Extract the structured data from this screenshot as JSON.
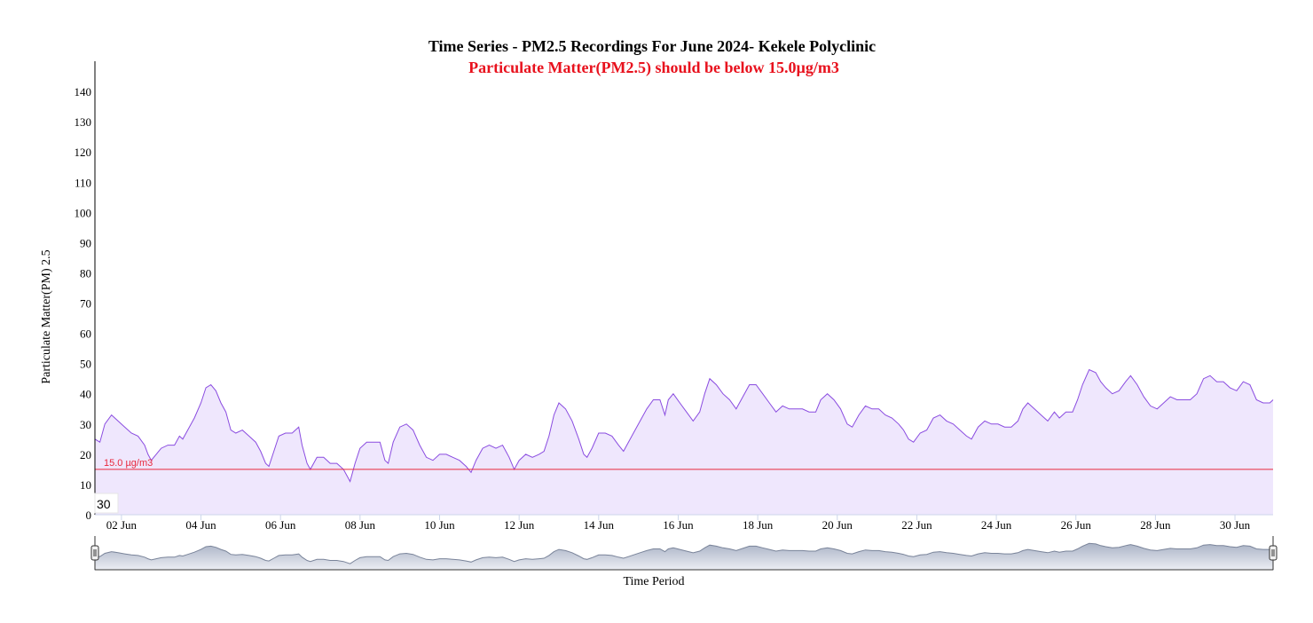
{
  "chart_data": {
    "type": "area",
    "title": "Time Series - PM2.5 Recordings For June 2024- Kekele Polyclinic",
    "subtitle": "Particulate Matter(PM2.5) should be below 15.0µg/m3",
    "xlabel": "Time Period",
    "ylabel": "Particulate Matter(PM) 2.5",
    "ylim": [
      0,
      150
    ],
    "yticks": [
      0,
      10,
      20,
      30,
      40,
      50,
      60,
      70,
      80,
      90,
      100,
      110,
      120,
      130,
      140
    ],
    "x_domain": [
      "2024-06-01T08:00",
      "2024-06-30T23:00"
    ],
    "xticks": [
      {
        "date": "2024-06-02",
        "label": "02 Jun"
      },
      {
        "date": "2024-06-04",
        "label": "04 Jun"
      },
      {
        "date": "2024-06-06",
        "label": "06 Jun"
      },
      {
        "date": "2024-06-08",
        "label": "08 Jun"
      },
      {
        "date": "2024-06-10",
        "label": "10 Jun"
      },
      {
        "date": "2024-06-12",
        "label": "12 Jun"
      },
      {
        "date": "2024-06-14",
        "label": "14 Jun"
      },
      {
        "date": "2024-06-16",
        "label": "16 Jun"
      },
      {
        "date": "2024-06-18",
        "label": "18 Jun"
      },
      {
        "date": "2024-06-20",
        "label": "20 Jun"
      },
      {
        "date": "2024-06-22",
        "label": "22 Jun"
      },
      {
        "date": "2024-06-24",
        "label": "24 Jun"
      },
      {
        "date": "2024-06-26",
        "label": "26 Jun"
      },
      {
        "date": "2024-06-28",
        "label": "28 Jun"
      },
      {
        "date": "2024-06-30",
        "label": "30 Jun"
      }
    ],
    "threshold": {
      "value": 15.0,
      "label": "15.0 µg/m3",
      "color": "#e8283c"
    },
    "badge": "30",
    "grid": false,
    "legend": "none",
    "series": [
      {
        "color": "#8a4ce0",
        "fill": "#efe7fd",
        "points": [
          [
            "2024-06-01T08:00",
            25
          ],
          [
            "2024-06-01T11:00",
            24
          ],
          [
            "2024-06-01T14:00",
            30
          ],
          [
            "2024-06-01T18:00",
            33
          ],
          [
            "2024-06-01T22:00",
            31
          ],
          [
            "2024-06-02T02:00",
            29
          ],
          [
            "2024-06-02T06:00",
            27
          ],
          [
            "2024-06-02T10:00",
            26
          ],
          [
            "2024-06-02T14:00",
            23
          ],
          [
            "2024-06-02T16:00",
            20
          ],
          [
            "2024-06-02T18:00",
            18
          ],
          [
            "2024-06-02T21:00",
            20
          ],
          [
            "2024-06-03T00:00",
            22
          ],
          [
            "2024-06-03T04:00",
            23
          ],
          [
            "2024-06-03T08:00",
            23
          ],
          [
            "2024-06-03T11:00",
            26
          ],
          [
            "2024-06-03T13:00",
            25
          ],
          [
            "2024-06-03T16:00",
            28
          ],
          [
            "2024-06-03T20:00",
            32
          ],
          [
            "2024-06-04T00:00",
            37
          ],
          [
            "2024-06-04T03:00",
            42
          ],
          [
            "2024-06-04T06:00",
            43
          ],
          [
            "2024-06-04T09:00",
            41
          ],
          [
            "2024-06-04T12:00",
            37
          ],
          [
            "2024-06-04T15:00",
            34
          ],
          [
            "2024-06-04T18:00",
            28
          ],
          [
            "2024-06-04T21:00",
            27
          ],
          [
            "2024-06-05T01:00",
            28
          ],
          [
            "2024-06-05T05:00",
            26
          ],
          [
            "2024-06-05T09:00",
            24
          ],
          [
            "2024-06-05T12:00",
            21
          ],
          [
            "2024-06-05T15:00",
            17
          ],
          [
            "2024-06-05T17:00",
            16
          ],
          [
            "2024-06-05T20:00",
            21
          ],
          [
            "2024-06-05T23:00",
            26
          ],
          [
            "2024-06-06T03:00",
            27
          ],
          [
            "2024-06-06T07:00",
            27
          ],
          [
            "2024-06-06T09:00",
            28
          ],
          [
            "2024-06-06T11:00",
            29
          ],
          [
            "2024-06-06T13:00",
            23
          ],
          [
            "2024-06-06T16:00",
            17
          ],
          [
            "2024-06-06T18:00",
            15
          ],
          [
            "2024-06-06T22:00",
            19
          ],
          [
            "2024-06-07T02:00",
            19
          ],
          [
            "2024-06-07T06:00",
            17
          ],
          [
            "2024-06-07T10:00",
            17
          ],
          [
            "2024-06-07T14:00",
            15
          ],
          [
            "2024-06-07T18:00",
            11
          ],
          [
            "2024-06-07T21:00",
            17
          ],
          [
            "2024-06-08T00:00",
            22
          ],
          [
            "2024-06-08T04:00",
            24
          ],
          [
            "2024-06-08T08:00",
            24
          ],
          [
            "2024-06-08T12:00",
            24
          ],
          [
            "2024-06-08T15:00",
            18
          ],
          [
            "2024-06-08T17:00",
            17
          ],
          [
            "2024-06-08T20:00",
            24
          ],
          [
            "2024-06-09T00:00",
            29
          ],
          [
            "2024-06-09T04:00",
            30
          ],
          [
            "2024-06-09T08:00",
            28
          ],
          [
            "2024-06-09T12:00",
            23
          ],
          [
            "2024-06-09T16:00",
            19
          ],
          [
            "2024-06-09T20:00",
            18
          ],
          [
            "2024-06-10T00:00",
            20
          ],
          [
            "2024-06-10T04:00",
            20
          ],
          [
            "2024-06-10T08:00",
            19
          ],
          [
            "2024-06-10T12:00",
            18
          ],
          [
            "2024-06-10T16:00",
            16
          ],
          [
            "2024-06-10T19:00",
            14
          ],
          [
            "2024-06-10T22:00",
            18
          ],
          [
            "2024-06-11T02:00",
            22
          ],
          [
            "2024-06-11T06:00",
            23
          ],
          [
            "2024-06-11T10:00",
            22
          ],
          [
            "2024-06-11T14:00",
            23
          ],
          [
            "2024-06-11T18:00",
            19
          ],
          [
            "2024-06-11T21:00",
            15
          ],
          [
            "2024-06-12T00:00",
            18
          ],
          [
            "2024-06-12T04:00",
            20
          ],
          [
            "2024-06-12T08:00",
            19
          ],
          [
            "2024-06-12T12:00",
            20
          ],
          [
            "2024-06-12T15:00",
            21
          ],
          [
            "2024-06-12T18:00",
            26
          ],
          [
            "2024-06-12T21:00",
            33
          ],
          [
            "2024-06-13T00:00",
            37
          ],
          [
            "2024-06-13T04:00",
            35
          ],
          [
            "2024-06-13T08:00",
            31
          ],
          [
            "2024-06-13T12:00",
            25
          ],
          [
            "2024-06-13T15:00",
            20
          ],
          [
            "2024-06-13T17:00",
            19
          ],
          [
            "2024-06-13T20:00",
            22
          ],
          [
            "2024-06-14T00:00",
            27
          ],
          [
            "2024-06-14T04:00",
            27
          ],
          [
            "2024-06-14T08:00",
            26
          ],
          [
            "2024-06-14T12:00",
            23
          ],
          [
            "2024-06-14T15:00",
            21
          ],
          [
            "2024-06-14T18:00",
            24
          ],
          [
            "2024-06-14T21:00",
            27
          ],
          [
            "2024-06-15T01:00",
            31
          ],
          [
            "2024-06-15T05:00",
            35
          ],
          [
            "2024-06-15T09:00",
            38
          ],
          [
            "2024-06-15T13:00",
            38
          ],
          [
            "2024-06-15T16:00",
            33
          ],
          [
            "2024-06-15T18:00",
            38
          ],
          [
            "2024-06-15T21:00",
            40
          ],
          [
            "2024-06-16T01:00",
            37
          ],
          [
            "2024-06-16T05:00",
            34
          ],
          [
            "2024-06-16T09:00",
            31
          ],
          [
            "2024-06-16T13:00",
            34
          ],
          [
            "2024-06-16T16:00",
            40
          ],
          [
            "2024-06-16T19:00",
            45
          ],
          [
            "2024-06-16T23:00",
            43
          ],
          [
            "2024-06-17T03:00",
            40
          ],
          [
            "2024-06-17T07:00",
            38
          ],
          [
            "2024-06-17T11:00",
            35
          ],
          [
            "2024-06-17T15:00",
            39
          ],
          [
            "2024-06-17T19:00",
            43
          ],
          [
            "2024-06-17T23:00",
            43
          ],
          [
            "2024-06-18T03:00",
            40
          ],
          [
            "2024-06-18T07:00",
            37
          ],
          [
            "2024-06-18T11:00",
            34
          ],
          [
            "2024-06-18T15:00",
            36
          ],
          [
            "2024-06-18T19:00",
            35
          ],
          [
            "2024-06-18T23:00",
            35
          ],
          [
            "2024-06-19T03:00",
            35
          ],
          [
            "2024-06-19T07:00",
            34
          ],
          [
            "2024-06-19T11:00",
            34
          ],
          [
            "2024-06-19T14:00",
            38
          ],
          [
            "2024-06-19T18:00",
            40
          ],
          [
            "2024-06-19T22:00",
            38
          ],
          [
            "2024-06-20T02:00",
            35
          ],
          [
            "2024-06-20T06:00",
            30
          ],
          [
            "2024-06-20T09:00",
            29
          ],
          [
            "2024-06-20T13:00",
            33
          ],
          [
            "2024-06-20T17:00",
            36
          ],
          [
            "2024-06-20T21:00",
            35
          ],
          [
            "2024-06-21T01:00",
            35
          ],
          [
            "2024-06-21T05:00",
            33
          ],
          [
            "2024-06-21T09:00",
            32
          ],
          [
            "2024-06-21T13:00",
            30
          ],
          [
            "2024-06-21T16:00",
            28
          ],
          [
            "2024-06-21T19:00",
            25
          ],
          [
            "2024-06-21T22:00",
            24
          ],
          [
            "2024-06-22T02:00",
            27
          ],
          [
            "2024-06-22T06:00",
            28
          ],
          [
            "2024-06-22T10:00",
            32
          ],
          [
            "2024-06-22T14:00",
            33
          ],
          [
            "2024-06-22T18:00",
            31
          ],
          [
            "2024-06-22T22:00",
            30
          ],
          [
            "2024-06-23T02:00",
            28
          ],
          [
            "2024-06-23T06:00",
            26
          ],
          [
            "2024-06-23T09:00",
            25
          ],
          [
            "2024-06-23T13:00",
            29
          ],
          [
            "2024-06-23T17:00",
            31
          ],
          [
            "2024-06-23T21:00",
            30
          ],
          [
            "2024-06-24T01:00",
            30
          ],
          [
            "2024-06-24T05:00",
            29
          ],
          [
            "2024-06-24T09:00",
            29
          ],
          [
            "2024-06-24T13:00",
            31
          ],
          [
            "2024-06-24T16:00",
            35
          ],
          [
            "2024-06-24T19:00",
            37
          ],
          [
            "2024-06-24T23:00",
            35
          ],
          [
            "2024-06-25T03:00",
            33
          ],
          [
            "2024-06-25T07:00",
            31
          ],
          [
            "2024-06-25T11:00",
            34
          ],
          [
            "2024-06-25T14:00",
            32
          ],
          [
            "2024-06-25T18:00",
            34
          ],
          [
            "2024-06-25T22:00",
            34
          ],
          [
            "2024-06-26T01:00",
            38
          ],
          [
            "2024-06-26T04:00",
            43
          ],
          [
            "2024-06-26T08:00",
            48
          ],
          [
            "2024-06-26T12:00",
            47
          ],
          [
            "2024-06-26T15:00",
            44
          ],
          [
            "2024-06-26T18:00",
            42
          ],
          [
            "2024-06-26T22:00",
            40
          ],
          [
            "2024-06-27T02:00",
            41
          ],
          [
            "2024-06-27T06:00",
            44
          ],
          [
            "2024-06-27T09:00",
            46
          ],
          [
            "2024-06-27T13:00",
            43
          ],
          [
            "2024-06-27T17:00",
            39
          ],
          [
            "2024-06-27T21:00",
            36
          ],
          [
            "2024-06-28T01:00",
            35
          ],
          [
            "2024-06-28T05:00",
            37
          ],
          [
            "2024-06-28T09:00",
            39
          ],
          [
            "2024-06-28T13:00",
            38
          ],
          [
            "2024-06-28T17:00",
            38
          ],
          [
            "2024-06-28T21:00",
            38
          ],
          [
            "2024-06-29T01:00",
            40
          ],
          [
            "2024-06-29T05:00",
            45
          ],
          [
            "2024-06-29T09:00",
            46
          ],
          [
            "2024-06-29T13:00",
            44
          ],
          [
            "2024-06-29T17:00",
            44
          ],
          [
            "2024-06-29T21:00",
            42
          ],
          [
            "2024-06-30T01:00",
            41
          ],
          [
            "2024-06-30T05:00",
            44
          ],
          [
            "2024-06-30T09:00",
            43
          ],
          [
            "2024-06-30T13:00",
            38
          ],
          [
            "2024-06-30T17:00",
            37
          ],
          [
            "2024-06-30T21:00",
            37
          ],
          [
            "2024-06-30T23:00",
            38
          ]
        ]
      }
    ]
  },
  "navigator": {
    "fill_top": "#aab3c6",
    "fill_bottom": "#eceef3",
    "line": "#7a849a"
  }
}
